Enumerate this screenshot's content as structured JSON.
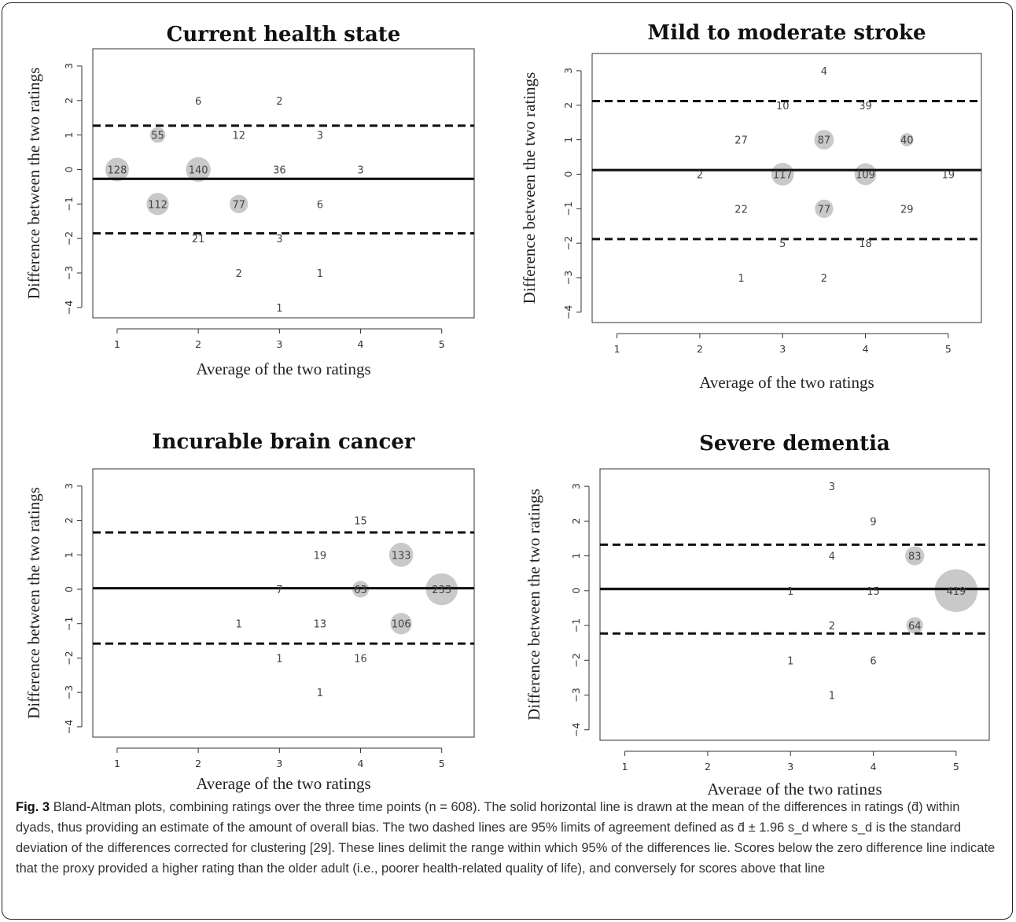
{
  "caption": {
    "label": "Fig. 3",
    "text": "Bland-Altman plots, combining ratings over the three time points (n = 608). The solid horizontal line is drawn at the mean of the differences in ratings (d̄) within dyads, thus providing an estimate of the amount of overall bias. The two dashed lines are 95% limits of agreement defined as d̄ ± 1.96 s_d where s_d is the standard deviation of the differences corrected for clustering [29]. These lines delimit the range within which 95% of the differences lie. Scores below the zero difference line indicate that the proxy provided a higher rating than the older adult (i.e., poorer health-related quality of life), and conversely for scores above that line"
  },
  "chart_data": [
    {
      "type": "scatter",
      "title": "Current health state",
      "xlabel": "Average of the two ratings",
      "ylabel": "Difference between the two ratings",
      "xlim": [
        0.7,
        5.4
      ],
      "ylim": [
        -4.3,
        3.5
      ],
      "xticks": [
        1,
        2,
        3,
        4,
        5
      ],
      "yticks": [
        -4,
        -3,
        -2,
        -1,
        0,
        1,
        2,
        3
      ],
      "mean_line": -0.27,
      "limits": [
        1.27,
        -1.85
      ],
      "points": [
        {
          "x": 1,
          "y": 0,
          "n": 128
        },
        {
          "x": 1.5,
          "y": -1,
          "n": 112
        },
        {
          "x": 2,
          "y": 0,
          "n": 140
        },
        {
          "x": 2.5,
          "y": -1,
          "n": 77
        },
        {
          "x": 1.5,
          "y": 1,
          "n": 55
        },
        {
          "x": 3,
          "y": 0,
          "n": 36
        },
        {
          "x": 2,
          "y": -2,
          "n": 21
        },
        {
          "x": 2.5,
          "y": 1,
          "n": 12
        },
        {
          "x": 2,
          "y": 2,
          "n": 6
        },
        {
          "x": 3.5,
          "y": -1,
          "n": 6
        },
        {
          "x": 3.5,
          "y": 1,
          "n": 3
        },
        {
          "x": 4,
          "y": 0,
          "n": 3
        },
        {
          "x": 3,
          "y": -2,
          "n": 3
        },
        {
          "x": 3,
          "y": 2,
          "n": 2
        },
        {
          "x": 2.5,
          "y": -3,
          "n": 2
        },
        {
          "x": 3.5,
          "y": -3,
          "n": 1
        },
        {
          "x": 3,
          "y": -4,
          "n": 1
        }
      ]
    },
    {
      "type": "scatter",
      "title": "Mild to moderate stroke",
      "xlabel": "Average of the two ratings",
      "ylabel": "Difference between the two ratings",
      "xlim": [
        0.7,
        5.4
      ],
      "ylim": [
        -4.3,
        3.5
      ],
      "xticks": [
        1,
        2,
        3,
        4,
        5
      ],
      "yticks": [
        -4,
        -3,
        -2,
        -1,
        0,
        1,
        2,
        3
      ],
      "mean_line": 0.12,
      "limits": [
        2.12,
        -1.88
      ],
      "points": [
        {
          "x": 3,
          "y": 0,
          "n": 117
        },
        {
          "x": 4,
          "y": 0,
          "n": 109
        },
        {
          "x": 3.5,
          "y": 1,
          "n": 87
        },
        {
          "x": 3.5,
          "y": -1,
          "n": 77
        },
        {
          "x": 4.5,
          "y": 1,
          "n": 40
        },
        {
          "x": 4,
          "y": 2,
          "n": 39
        },
        {
          "x": 4.5,
          "y": -1,
          "n": 29
        },
        {
          "x": 2.5,
          "y": 1,
          "n": 27
        },
        {
          "x": 2.5,
          "y": -1,
          "n": 22
        },
        {
          "x": 5,
          "y": 0,
          "n": 19
        },
        {
          "x": 4,
          "y": -2,
          "n": 18
        },
        {
          "x": 3,
          "y": 2,
          "n": 10
        },
        {
          "x": 3,
          "y": -2,
          "n": 5
        },
        {
          "x": 3.5,
          "y": 3,
          "n": 4
        },
        {
          "x": 2,
          "y": 0,
          "n": 2
        },
        {
          "x": 3.5,
          "y": -3,
          "n": 2
        },
        {
          "x": 2.5,
          "y": -3,
          "n": 1
        }
      ]
    },
    {
      "type": "scatter",
      "title": "Incurable brain cancer",
      "xlabel": "Average of the two ratings",
      "ylabel": "Difference between the two ratings",
      "xlim": [
        0.7,
        5.4
      ],
      "ylim": [
        -4.3,
        3.5
      ],
      "xticks": [
        1,
        2,
        3,
        4,
        5
      ],
      "yticks": [
        -4,
        -3,
        -2,
        -1,
        0,
        1,
        2,
        3
      ],
      "mean_line": 0.03,
      "limits": [
        1.65,
        -1.58
      ],
      "points": [
        {
          "x": 5,
          "y": 0,
          "n": 233
        },
        {
          "x": 4.5,
          "y": 1,
          "n": 133
        },
        {
          "x": 4.5,
          "y": -1,
          "n": 106
        },
        {
          "x": 4,
          "y": 0,
          "n": 63
        },
        {
          "x": 3.5,
          "y": 1,
          "n": 19
        },
        {
          "x": 4,
          "y": 2,
          "n": 15
        },
        {
          "x": 4,
          "y": -2,
          "n": 16
        },
        {
          "x": 3.5,
          "y": -1,
          "n": 13
        },
        {
          "x": 3,
          "y": 0,
          "n": 7
        },
        {
          "x": 2.5,
          "y": -1,
          "n": 1
        },
        {
          "x": 3,
          "y": -2,
          "n": 1
        },
        {
          "x": 3.5,
          "y": -3,
          "n": 1
        }
      ]
    },
    {
      "type": "scatter",
      "title": "Severe dementia",
      "xlabel": "Average of the two ratings",
      "ylabel": "Difference between the two ratings",
      "xlim": [
        0.7,
        5.4
      ],
      "ylim": [
        -4.3,
        3.5
      ],
      "xticks": [
        1,
        2,
        3,
        4,
        5
      ],
      "yticks": [
        -4,
        -3,
        -2,
        -1,
        0,
        1,
        2,
        3
      ],
      "mean_line": 0.05,
      "limits": [
        1.32,
        -1.23
      ],
      "points": [
        {
          "x": 5,
          "y": 0,
          "n": 419
        },
        {
          "x": 4.5,
          "y": 1,
          "n": 83
        },
        {
          "x": 4.5,
          "y": -1,
          "n": 64
        },
        {
          "x": 4,
          "y": 0,
          "n": 15
        },
        {
          "x": 4,
          "y": 2,
          "n": 9
        },
        {
          "x": 4,
          "y": -2,
          "n": 6
        },
        {
          "x": 3.5,
          "y": 1,
          "n": 4
        },
        {
          "x": 3.5,
          "y": 3,
          "n": 3
        },
        {
          "x": 3.5,
          "y": -1,
          "n": 2
        },
        {
          "x": 3,
          "y": 0,
          "n": 1
        },
        {
          "x": 3,
          "y": -2,
          "n": 1
        },
        {
          "x": 3.5,
          "y": -3,
          "n": 1
        }
      ]
    }
  ]
}
